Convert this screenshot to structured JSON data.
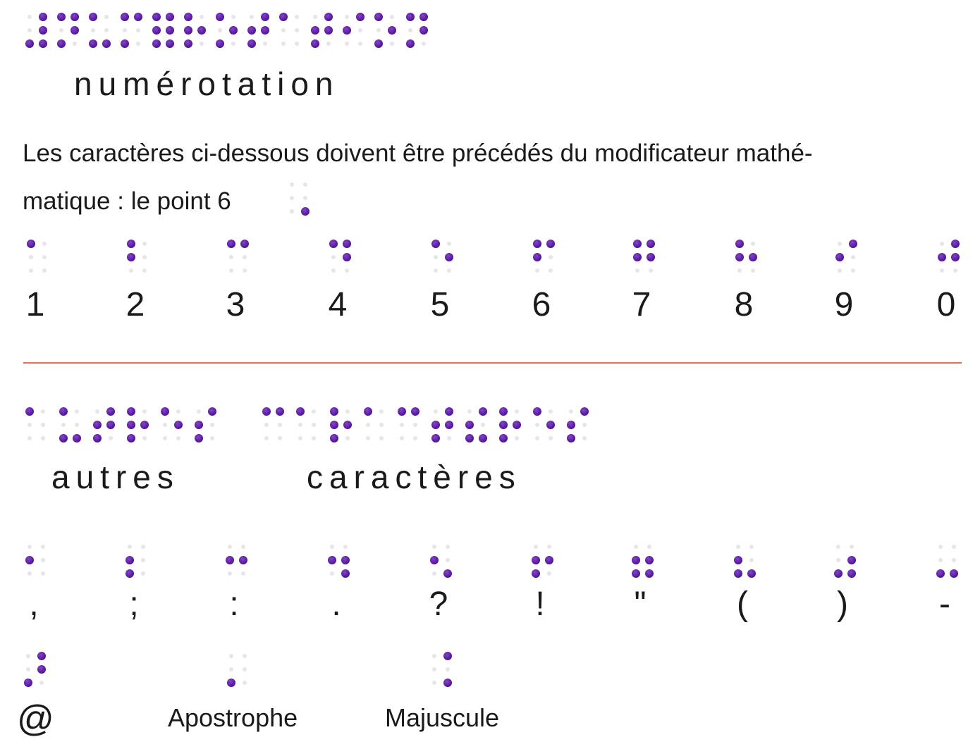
{
  "section1": {
    "title": "numérotation",
    "intro_line1": "Les caractères ci-dessous doivent être précédés du modificateur mathé-",
    "intro_line2": "matique : le point 6",
    "items": [
      {
        "label": "1",
        "braille": "⠁"
      },
      {
        "label": "2",
        "braille": "⠃"
      },
      {
        "label": "3",
        "braille": "⠉"
      },
      {
        "label": "4",
        "braille": "⠙"
      },
      {
        "label": "5",
        "braille": "⠑"
      },
      {
        "label": "6",
        "braille": "⠋"
      },
      {
        "label": "7",
        "braille": "⠛"
      },
      {
        "label": "8",
        "braille": "⠓"
      },
      {
        "label": "9",
        "braille": "⠊"
      },
      {
        "label": "0",
        "braille": "⠚"
      }
    ]
  },
  "section2": {
    "title_word1": "autres",
    "title_word2": "caractères",
    "items": [
      {
        "label": ",",
        "braille": "⠂"
      },
      {
        "label": ";",
        "braille": "⠆"
      },
      {
        "label": ":",
        "braille": "⠒"
      },
      {
        "label": ".",
        "braille": "⠲"
      },
      {
        "label": "?",
        "braille": "⠢"
      },
      {
        "label": "!",
        "braille": "⠖"
      },
      {
        "label": "\"",
        "braille": "⠶"
      },
      {
        "label": "(",
        "braille": "⠦"
      },
      {
        "label": ")",
        "braille": "⠴"
      },
      {
        "label": "-",
        "braille": "⠤"
      }
    ],
    "extras": [
      {
        "label": "@",
        "braille": "⠜"
      },
      {
        "label": "Apostrophe",
        "braille": "⠄"
      },
      {
        "label": "Majuscule",
        "braille": "⠨"
      }
    ]
  },
  "colors": {
    "dot": "#5a1fa8",
    "rule": "#e07060"
  }
}
